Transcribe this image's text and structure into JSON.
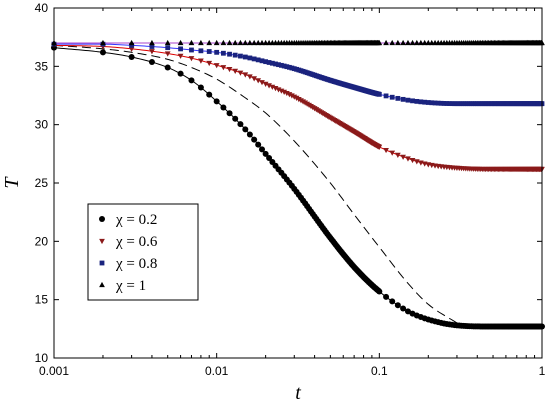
{
  "chart_data": {
    "type": "scatter",
    "title": "",
    "xlabel": "t",
    "ylabel": "T",
    "x_scale": "log",
    "xlim": [
      0.001,
      1
    ],
    "ylim": [
      10,
      40
    ],
    "x_ticks": [
      0.001,
      0.01,
      0.1,
      1
    ],
    "x_tick_labels": [
      "0.001",
      "0.01",
      "0.1",
      "1"
    ],
    "y_ticks": [
      10,
      15,
      20,
      25,
      30,
      35,
      40
    ],
    "y_tick_labels": [
      "10",
      "15",
      "20",
      "25",
      "30",
      "35",
      "40"
    ],
    "grid": false,
    "legend_position": "bottom-left",
    "series": [
      {
        "name": "χ = 0.2",
        "marker": "circle",
        "marker_color": "#000000",
        "fit_color": "#000000",
        "x": [
          0.001,
          0.002,
          0.003,
          0.005,
          0.007,
          0.01,
          0.015,
          0.02,
          0.03,
          0.05,
          0.07,
          0.1,
          0.15,
          0.2,
          0.3,
          0.5,
          0.7,
          1
        ],
        "y": [
          36.6,
          36.2,
          35.8,
          34.9,
          33.8,
          32.0,
          29.6,
          27.5,
          24.5,
          20.3,
          17.8,
          15.7,
          14.0,
          13.3,
          12.8,
          12.7,
          12.7,
          12.7
        ]
      },
      {
        "name": "χ = 0.6",
        "marker": "triangle-down",
        "marker_color": "#8b1a1a",
        "fit_color": "#dd0000",
        "x": [
          0.001,
          0.002,
          0.003,
          0.005,
          0.007,
          0.01,
          0.015,
          0.02,
          0.03,
          0.05,
          0.07,
          0.1,
          0.15,
          0.2,
          0.3,
          0.5,
          0.7,
          1
        ],
        "y": [
          36.8,
          36.7,
          36.5,
          36.1,
          35.7,
          35.1,
          34.3,
          33.5,
          32.4,
          30.6,
          29.4,
          28.1,
          27.1,
          26.6,
          26.3,
          26.2,
          26.2,
          26.2
        ]
      },
      {
        "name": "χ = 0.8",
        "marker": "square",
        "marker_color": "#1a237e",
        "fit_color": "#3333ff",
        "x": [
          0.001,
          0.002,
          0.003,
          0.005,
          0.007,
          0.01,
          0.015,
          0.02,
          0.03,
          0.05,
          0.07,
          0.1,
          0.15,
          0.2,
          0.3,
          0.5,
          0.7,
          1
        ],
        "y": [
          36.9,
          36.9,
          36.8,
          36.6,
          36.4,
          36.2,
          35.8,
          35.4,
          34.8,
          33.8,
          33.2,
          32.6,
          32.1,
          31.9,
          31.8,
          31.8,
          31.8,
          31.8
        ]
      },
      {
        "name": "χ = 1",
        "marker": "triangle-up",
        "marker_color": "#000000",
        "fit_color": "#aa44cc",
        "x": [
          0.001,
          0.002,
          0.003,
          0.005,
          0.007,
          0.01,
          0.015,
          0.02,
          0.03,
          0.05,
          0.07,
          0.1,
          0.15,
          0.2,
          0.3,
          0.5,
          0.7,
          1
        ],
        "y": [
          37.0,
          37.0,
          37.0,
          37.0,
          37.0,
          37.0,
          37.0,
          37.0,
          37.0,
          37.0,
          37.0,
          37.0,
          37.0,
          37.0,
          37.0,
          37.0,
          37.0,
          37.0
        ]
      }
    ],
    "reference_curve": {
      "style": "dashed",
      "color": "#000000",
      "x": [
        0.001,
        0.002,
        0.003,
        0.005,
        0.007,
        0.01,
        0.015,
        0.02,
        0.03,
        0.05,
        0.07,
        0.1,
        0.15,
        0.2,
        0.3
      ],
      "y": [
        36.8,
        36.5,
        36.2,
        35.6,
        34.9,
        33.9,
        32.3,
        31.0,
        28.6,
        25.0,
        22.3,
        19.5,
        16.4,
        14.6,
        13.0
      ]
    }
  }
}
